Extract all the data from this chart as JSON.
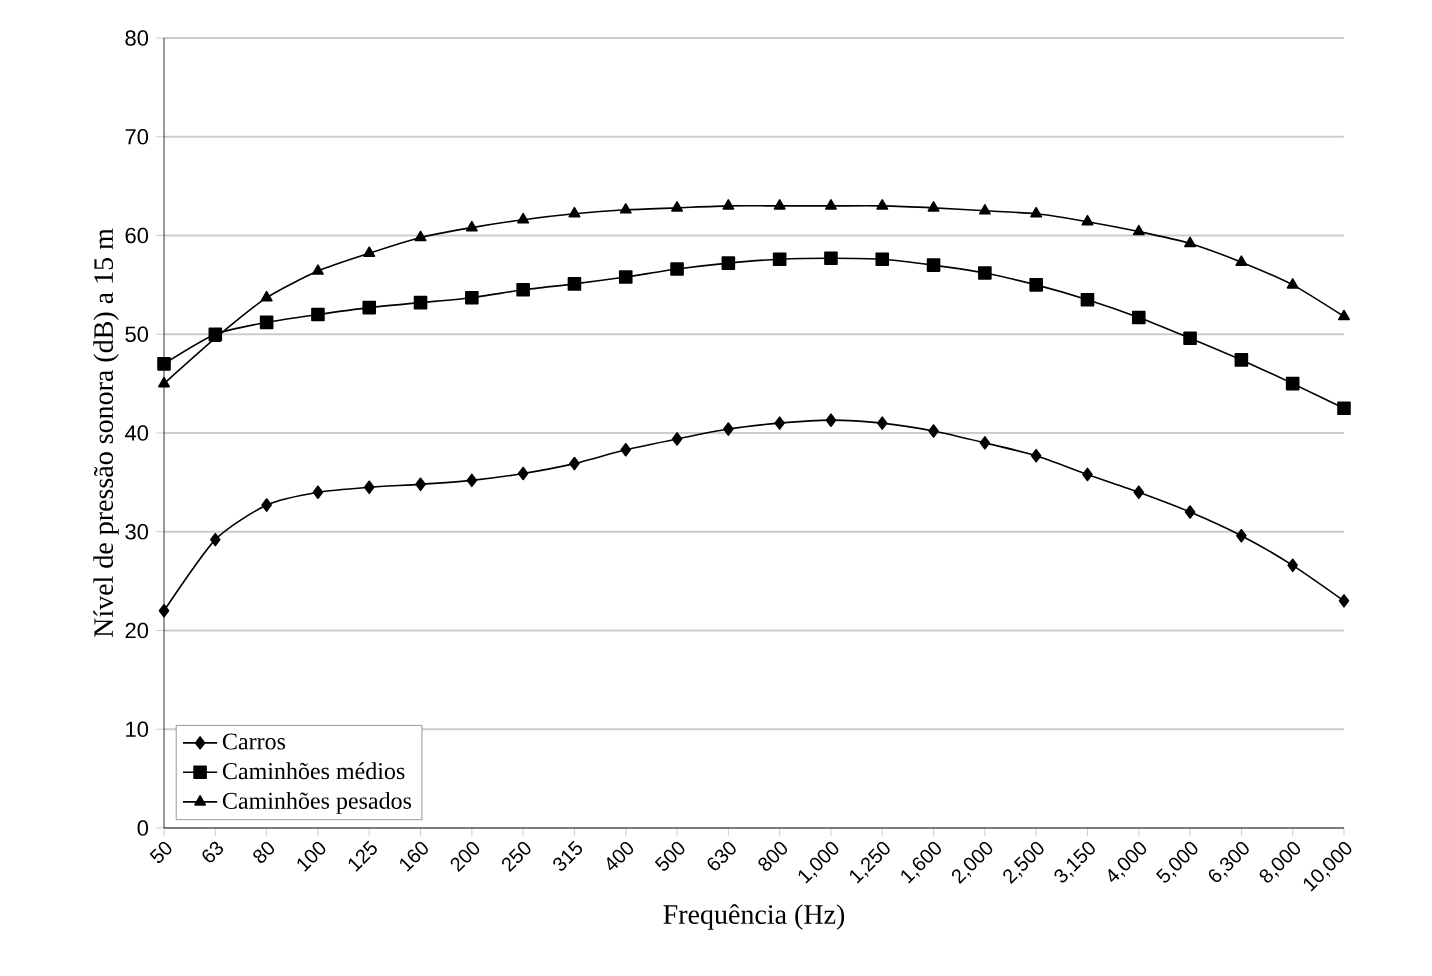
{
  "chart_data": {
    "type": "line",
    "xlabel": "Frequência (Hz)",
    "ylabel": "Nível de pressão sonora (dB) a 15 m",
    "categories": [
      "50",
      "63",
      "80",
      "100",
      "125",
      "160",
      "200",
      "250",
      "315",
      "400",
      "500",
      "630",
      "800",
      "1,000",
      "1,250",
      "1,600",
      "2,000",
      "2,500",
      "3,150",
      "4,000",
      "5,000",
      "6,300",
      "8,000",
      "10,000"
    ],
    "series": [
      {
        "name": "Carros",
        "color": "#000000",
        "marker": "diamond",
        "values": [
          22,
          29.2,
          32.7,
          34,
          34.5,
          34.8,
          35.2,
          35.9,
          36.9,
          38.3,
          39.4,
          40.4,
          41,
          41.3,
          41,
          40.2,
          39,
          37.7,
          35.8,
          34,
          32,
          29.6,
          26.6,
          23
        ]
      },
      {
        "name": "Caminhões médios",
        "color": "#000000",
        "marker": "square",
        "values": [
          47,
          50,
          51.2,
          52,
          52.7,
          53.2,
          53.7,
          54.5,
          55.1,
          55.8,
          56.6,
          57.2,
          57.6,
          57.7,
          57.6,
          57,
          56.2,
          55,
          53.5,
          51.7,
          49.6,
          47.4,
          45,
          42.5
        ]
      },
      {
        "name": "Caminhões pesados",
        "color": "#000000",
        "marker": "triangle",
        "values": [
          45,
          49.6,
          53.7,
          56.4,
          58.2,
          59.8,
          60.8,
          61.6,
          62.2,
          62.6,
          62.8,
          63,
          63,
          63,
          63,
          62.8,
          62.5,
          62.2,
          61.4,
          60.4,
          59.2,
          57.3,
          55,
          51.8
        ]
      }
    ],
    "ylim": [
      0,
      80
    ],
    "yticks": [
      0,
      10,
      20,
      30,
      40,
      50,
      60,
      70,
      80
    ],
    "grid": "y",
    "legend": "bottom left",
    "line_style": "solid"
  }
}
